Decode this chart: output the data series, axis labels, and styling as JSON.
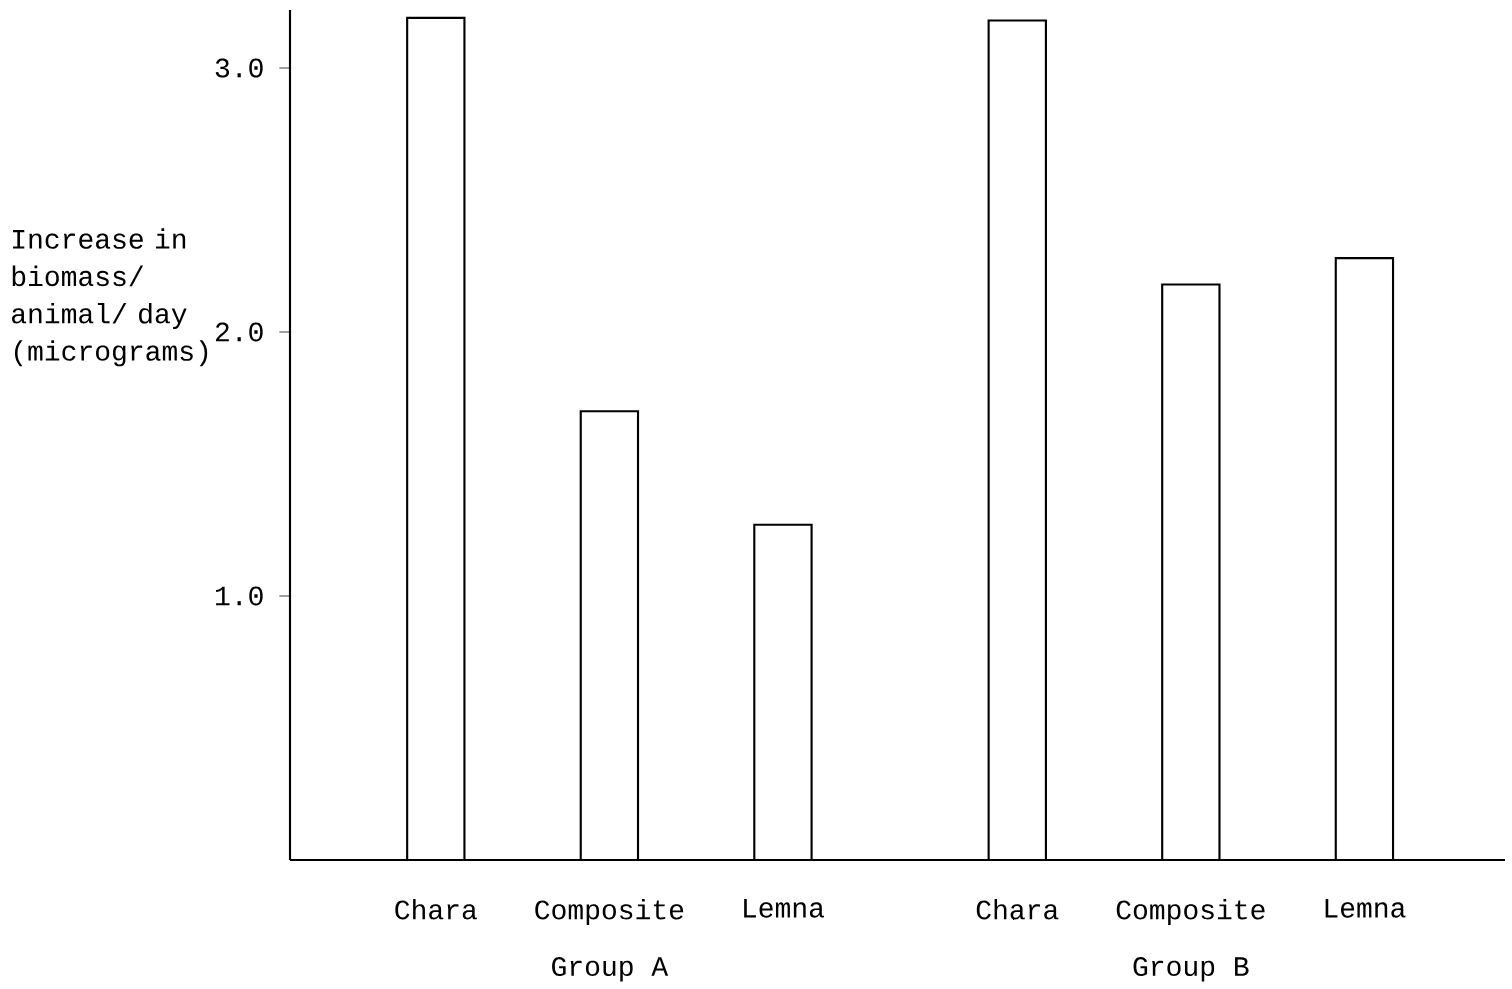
{
  "chart_data": {
    "type": "bar",
    "ylabel": "Increase in biomass/ animal/ day (micrograms)",
    "categories": [
      "Chara",
      "Composite",
      "Lemna",
      "Chara",
      "Composite",
      "Lemna"
    ],
    "values": [
      3.19,
      1.7,
      1.27,
      3.18,
      2.18,
      2.28
    ],
    "color": "#000000",
    "ylim": [
      0,
      3.22
    ],
    "yticks": [
      {
        "value": 1,
        "label": "1.0"
      },
      {
        "value": 2,
        "label": "2.0"
      },
      {
        "value": 3,
        "label": "3.0"
      }
    ],
    "annotations": [
      "Group A",
      "Group B"
    ],
    "grid": false
  }
}
